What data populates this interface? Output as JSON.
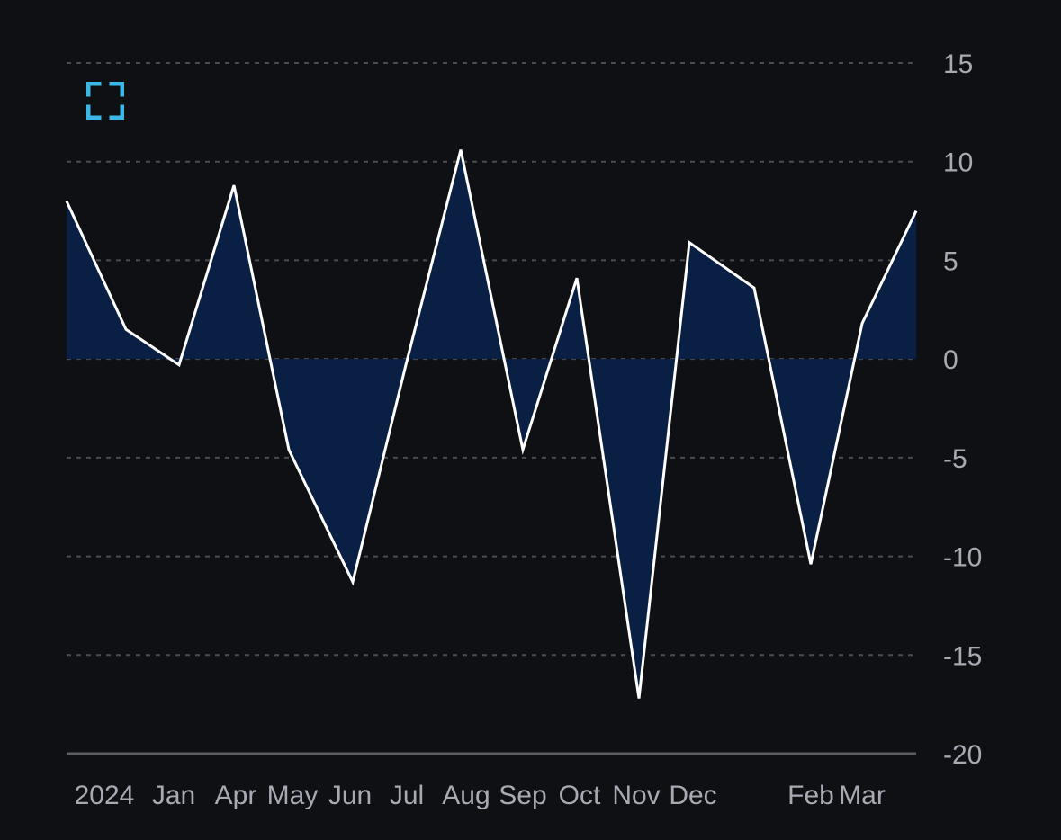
{
  "chart_data": {
    "type": "area",
    "x": [
      "2024",
      "",
      "Jan",
      "Apr",
      "May",
      "Jun",
      "Jul",
      "Aug",
      "Sep",
      "Oct",
      "Nov",
      "Dec",
      "",
      "Feb",
      "Mar",
      ""
    ],
    "values": [
      8.0,
      1.5,
      -0.3,
      8.8,
      -4.6,
      -11.3,
      -0.3,
      10.6,
      -4.6,
      4.1,
      -17.2,
      5.9,
      3.6,
      -10.4,
      1.8,
      7.5
    ],
    "x_tick_labels": [
      "2024",
      "Jan",
      "Apr",
      "May",
      "Jun",
      "Jul",
      "Aug",
      "Sep",
      "Oct",
      "Nov",
      "Dec",
      "Feb",
      "Mar"
    ],
    "y_ticks": [
      15,
      10,
      5,
      0,
      -5,
      -10,
      -15,
      -20
    ],
    "ylim": [
      -20,
      15
    ],
    "grid": true,
    "y_axis_position": "right",
    "colors": {
      "background": "#0f1013",
      "fill": "#0a1f44",
      "line": "#ffffff",
      "grid": "#4a4c52",
      "axis": "#5b5d63",
      "text": "#a7a9b3",
      "icon": "#3cb8e8"
    }
  },
  "toolbar": {
    "expand_icon": "expand-icon"
  }
}
